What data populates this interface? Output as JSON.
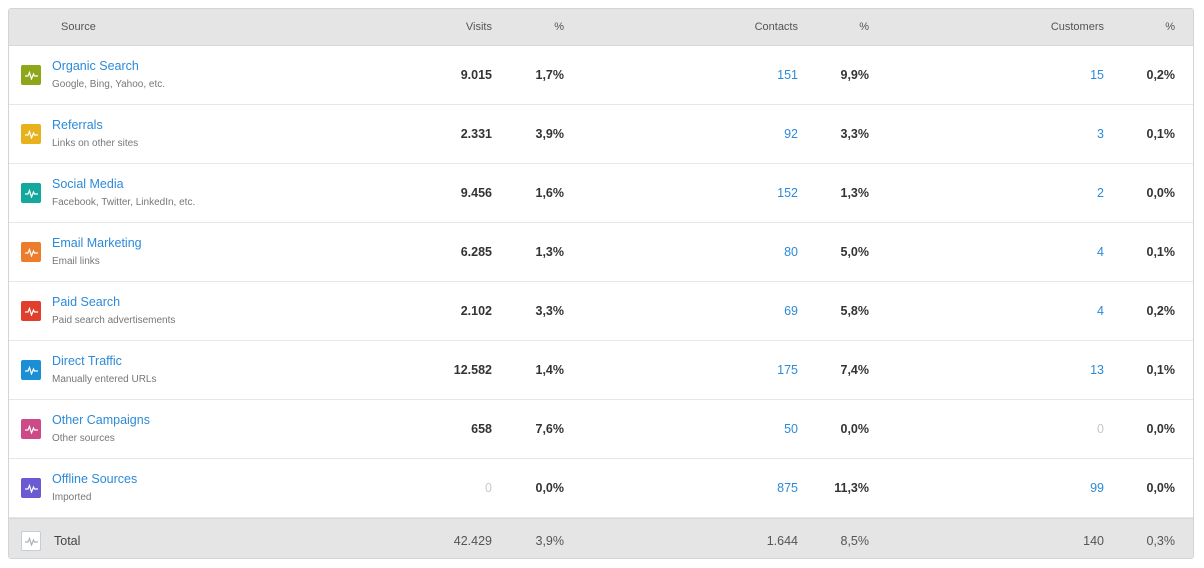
{
  "header": {
    "source": "Source",
    "visits": "Visits",
    "visits_pct": "%",
    "contacts": "Contacts",
    "contacts_pct": "%",
    "customers": "Customers",
    "customers_pct": "%"
  },
  "rows": [
    {
      "title": "Organic Search",
      "subtitle": "Google, Bing, Yahoo, etc.",
      "color": "#8ea61a",
      "icon": "pulse-icon",
      "visits": "9.015",
      "visits_pct": "1,7%",
      "contacts": "151",
      "contacts_pct": "9,9%",
      "customers": "15",
      "customers_pct": "0,2%"
    },
    {
      "title": "Referrals",
      "subtitle": "Links on other sites",
      "color": "#e8b21d",
      "icon": "pulse-icon",
      "visits": "2.331",
      "visits_pct": "3,9%",
      "contacts": "92",
      "contacts_pct": "3,3%",
      "customers": "3",
      "customers_pct": "0,1%"
    },
    {
      "title": "Social Media",
      "subtitle": "Facebook, Twitter, LinkedIn, etc.",
      "color": "#13a89e",
      "icon": "pulse-icon",
      "visits": "9.456",
      "visits_pct": "1,6%",
      "contacts": "152",
      "contacts_pct": "1,3%",
      "customers": "2",
      "customers_pct": "0,0%"
    },
    {
      "title": "Email Marketing",
      "subtitle": "Email links",
      "color": "#ec7d2c",
      "icon": "pulse-icon",
      "visits": "6.285",
      "visits_pct": "1,3%",
      "contacts": "80",
      "contacts_pct": "5,0%",
      "customers": "4",
      "customers_pct": "0,1%"
    },
    {
      "title": "Paid Search",
      "subtitle": "Paid search advertisements",
      "color": "#e0402b",
      "icon": "pulse-icon",
      "visits": "2.102",
      "visits_pct": "3,3%",
      "contacts": "69",
      "contacts_pct": "5,8%",
      "customers": "4",
      "customers_pct": "0,2%"
    },
    {
      "title": "Direct Traffic",
      "subtitle": "Manually entered URLs",
      "color": "#1a8fd6",
      "icon": "pulse-icon",
      "visits": "12.582",
      "visits_pct": "1,4%",
      "contacts": "175",
      "contacts_pct": "7,4%",
      "customers": "13",
      "customers_pct": "0,1%"
    },
    {
      "title": "Other Campaigns",
      "subtitle": "Other sources",
      "color": "#cc4a86",
      "icon": "pulse-icon",
      "visits": "658",
      "visits_pct": "7,6%",
      "contacts": "50",
      "contacts_pct": "0,0%",
      "customers": "0",
      "customers_pct": "0,0%"
    },
    {
      "title": "Offline Sources",
      "subtitle": "Imported",
      "color": "#6a5bd2",
      "icon": "pulse-icon",
      "visits": "0",
      "visits_pct": "0,0%",
      "contacts": "875",
      "contacts_pct": "11,3%",
      "customers": "99",
      "customers_pct": "0,0%"
    }
  ],
  "total": {
    "label": "Total",
    "icon": "pulse-icon",
    "visits": "42.429",
    "visits_pct": "3,9%",
    "contacts": "1.644",
    "contacts_pct": "8,5%",
    "customers": "140",
    "customers_pct": "0,3%"
  }
}
